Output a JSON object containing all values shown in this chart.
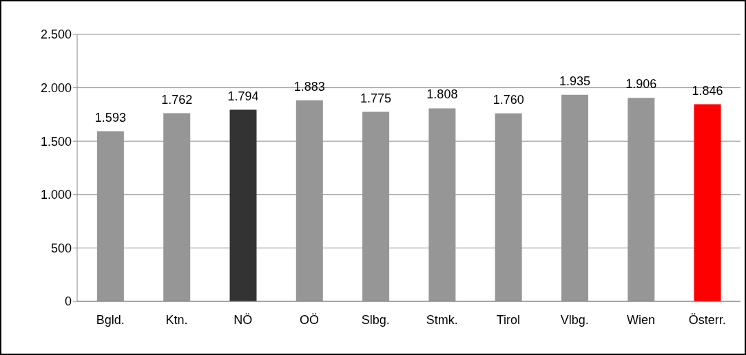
{
  "chart_data": {
    "type": "bar",
    "categories": [
      "Bgld.",
      "Ktn.",
      "NÖ",
      "OÖ",
      "Slbg.",
      "Stmk.",
      "Tirol",
      "Vlbg.",
      "Wien",
      "Österr."
    ],
    "values": [
      1593,
      1762,
      1794,
      1883,
      1775,
      1808,
      1760,
      1935,
      1906,
      1846
    ],
    "colors": [
      "#969696",
      "#969696",
      "#333333",
      "#969696",
      "#969696",
      "#969696",
      "#969696",
      "#969696",
      "#969696",
      "#ff0000"
    ],
    "value_labels": [
      "1.593",
      "1.762",
      "1.794",
      "1.883",
      "1.775",
      "1.808",
      "1.760",
      "1.935",
      "1.906",
      "1.846"
    ],
    "ylim": [
      0,
      2500
    ],
    "yticks": [
      {
        "value": 0,
        "label": "0"
      },
      {
        "value": 500,
        "label": "500"
      },
      {
        "value": 1000,
        "label": "1.000"
      },
      {
        "value": 1500,
        "label": "1.500"
      },
      {
        "value": 2000,
        "label": "2.000"
      },
      {
        "value": 2500,
        "label": "2.500"
      }
    ],
    "grid": "y",
    "legend": false
  }
}
